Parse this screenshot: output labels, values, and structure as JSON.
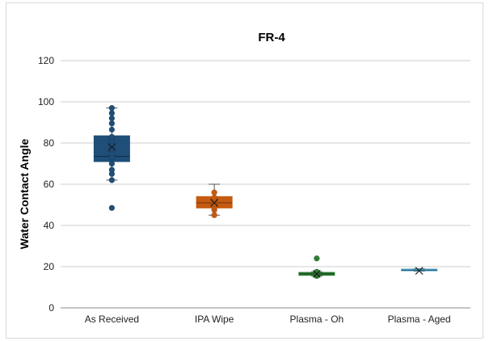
{
  "chart_data": {
    "type": "box",
    "title": "FR-4",
    "xlabel": "",
    "ylabel": "Water Contact Angle",
    "ylim": [
      0,
      120
    ],
    "yticks": [
      0,
      20,
      40,
      60,
      80,
      100,
      120
    ],
    "grid": true,
    "categories": [
      "As Received",
      "IPA Wipe",
      "Plasma - Oh",
      "Plasma - Aged"
    ],
    "boxes": [
      {
        "category": "As Received",
        "color": "#1f4e79",
        "min": 62,
        "q1": 71,
        "median": 73.5,
        "q3": 83.5,
        "max": 97,
        "mean": 78,
        "points": [
          48.5,
          62,
          65,
          67,
          70,
          73,
          75,
          77,
          79,
          81,
          83,
          86.5,
          89.5,
          92,
          94.5,
          97
        ]
      },
      {
        "category": "IPA Wipe",
        "color": "#c55a11",
        "min": 45,
        "q1": 48.5,
        "median": 51,
        "q3": 54,
        "max": 60,
        "mean": 51,
        "points": [
          45,
          47.5,
          49,
          50.5,
          52,
          53.5,
          56
        ]
      },
      {
        "category": "Plasma - Oh",
        "color": "#2e7d32",
        "min": 15.5,
        "q1": 15.8,
        "median": 16.5,
        "q3": 17.2,
        "max": 17.5,
        "mean": 16.5,
        "points": [
          15.5,
          16,
          16.5,
          17,
          17.5,
          24
        ]
      },
      {
        "category": "Plasma - Aged",
        "color": "#4aa3c8",
        "min": 17.8,
        "q1": 18,
        "median": 18.3,
        "q3": 18.8,
        "max": 19,
        "mean": 18,
        "points": []
      }
    ]
  }
}
